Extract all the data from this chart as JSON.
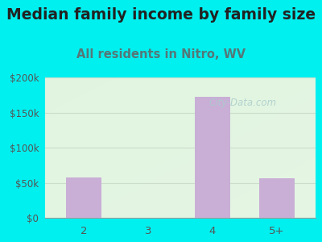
{
  "title": "Median family income by family size",
  "subtitle": "All residents in Nitro, WV",
  "categories": [
    "2",
    "3",
    "4",
    "5+"
  ],
  "values": [
    57000,
    0,
    172000,
    56000
  ],
  "bar_color": "#c9aed6",
  "title_fontsize": 13.5,
  "subtitle_fontsize": 10.5,
  "subtitle_color": "#557777",
  "title_color": "#222222",
  "ylim": [
    0,
    200000
  ],
  "yticks": [
    0,
    50000,
    100000,
    150000,
    200000
  ],
  "ytick_labels": [
    "$0",
    "$50k",
    "$100k",
    "$150k",
    "$200k"
  ],
  "background_outer": "#00f0f0",
  "watermark": "City-Data.com",
  "watermark_color": "#aacccc",
  "grid_color": "#ccddcc",
  "tick_color": "#555555"
}
